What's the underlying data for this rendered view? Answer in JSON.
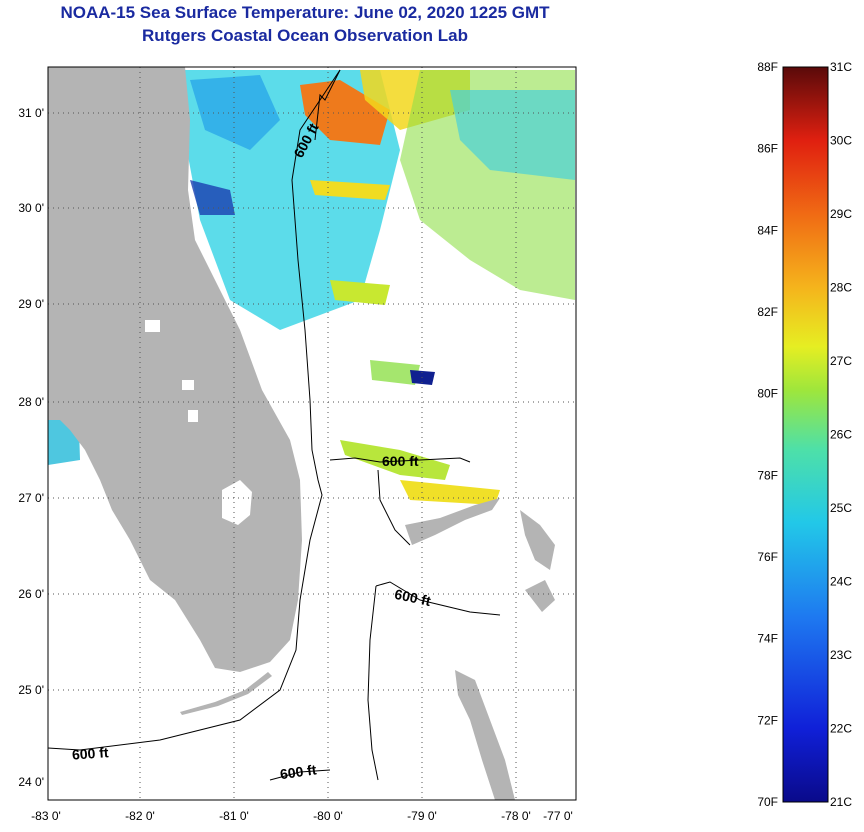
{
  "title": "NOAA-15 Sea Surface Temperature:  June 02, 2020 1225 GMT",
  "subtitle": "Rutgers Coastal Ocean Observation Lab",
  "map": {
    "lon_labels": [
      "-83 0'",
      "-82 0'",
      "-81 0'",
      "-80 0'",
      "-79 0'",
      "-78 0'",
      "-77 0'"
    ],
    "lat_labels": [
      "31 0'",
      "30 0'",
      "29 0'",
      "28 0'",
      "27 0'",
      "26 0'",
      "25 0'",
      "24 0'"
    ],
    "contour_labels": [
      "600 ft",
      "600 ft",
      "600 ft",
      "600 ft",
      "600 ft"
    ],
    "land_color": "#b4b4b4",
    "contour_color": "#000000"
  },
  "colorbar": {
    "f_labels": [
      "88F",
      "86F",
      "84F",
      "82F",
      "80F",
      "78F",
      "76F",
      "74F",
      "72F",
      "70F"
    ],
    "c_labels": [
      "31C",
      "30C",
      "29C",
      "28C",
      "27C",
      "26C",
      "25C",
      "24C",
      "23C",
      "22C",
      "21C"
    ],
    "range_c": [
      21,
      31
    ],
    "range_f": [
      70,
      88
    ]
  }
}
